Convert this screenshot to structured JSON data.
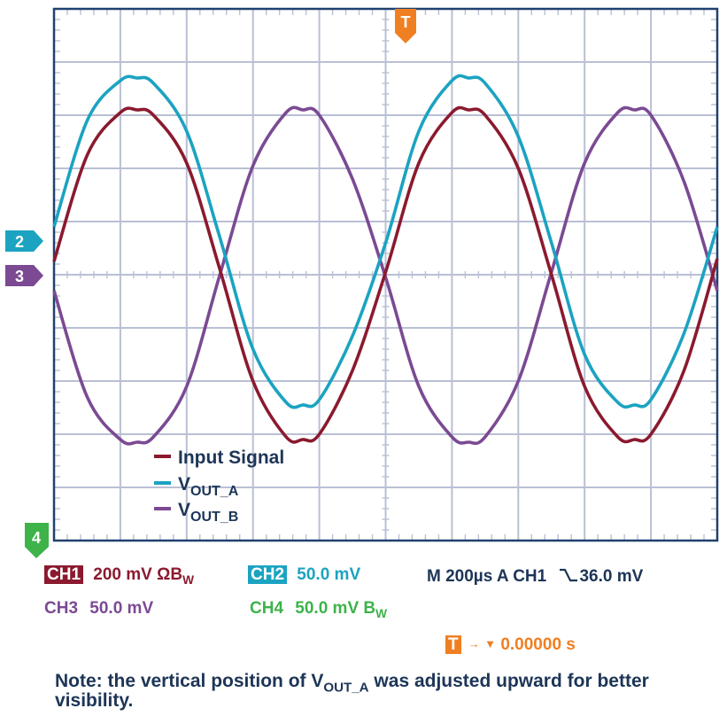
{
  "colors": {
    "ch1": "#8b1a2f",
    "ch2": "#1ba3c1",
    "ch3": "#7b4a93",
    "ch4": "#3db34a",
    "trigger": "#f07f22",
    "text": "#1d3557",
    "grid": "#b9c0d4",
    "frame": "#20416e"
  },
  "markers": {
    "trigger_label": "T",
    "ch2_label": "2",
    "ch3_label": "3",
    "ch4_label": "4"
  },
  "legend": {
    "input": "Input Signal",
    "vouta_main": "V",
    "vouta_sub": "OUT_A",
    "voutb_main": "V",
    "voutb_sub": "OUT_B"
  },
  "status": {
    "ch1_badge": "CH1",
    "ch1_setting": "200 mV ΩB",
    "ch1_sub": "W",
    "ch2_badge": "CH2",
    "ch2_setting": "50.0 mV",
    "timebase": "M 200µs  A  CH1",
    "trigger_level": "36.0 mV",
    "ch3_label": "CH3",
    "ch3_setting": "50.0 mV",
    "ch4_label": "CH4",
    "ch4_setting": "50.0 mV B",
    "ch4_sub": "W",
    "trigger_badge": "T",
    "trigger_time": "0.00000 s"
  },
  "note": {
    "line_a": "Note: the vertical position of V",
    "sub": "OUT_A",
    "line_b": " was adjusted upward for better visibility."
  },
  "chart_data": {
    "type": "line",
    "title": "",
    "xlabel": "",
    "ylabel": "",
    "x_unit": "divisions",
    "y_unit": "divisions",
    "xlim": [
      0,
      10
    ],
    "ylim": [
      -5,
      5
    ],
    "grid": true,
    "legend_position": "bottom-left",
    "series": [
      {
        "name": "Input Signal",
        "color": "#8b1a2f",
        "x": [
          0,
          0.5,
          1,
          1.25,
          1.5,
          2,
          2.5,
          3,
          3.5,
          3.75,
          4,
          4.5,
          5,
          5.5,
          6,
          6.25,
          6.5,
          7,
          7.5,
          8,
          8.5,
          8.75,
          9,
          9.5,
          10
        ],
        "y": [
          0.25,
          2.25,
          3.05,
          3.1,
          3.0,
          2.1,
          0.1,
          -2.0,
          -3.05,
          -3.1,
          -3.0,
          -1.8,
          0.05,
          2.1,
          3.05,
          3.1,
          3.0,
          2.0,
          0.0,
          -2.1,
          -3.05,
          -3.1,
          -3.0,
          -1.8,
          0.3
        ]
      },
      {
        "name": "VOUT_A",
        "color": "#1ba3c1",
        "x": [
          0,
          0.5,
          1,
          1.25,
          1.5,
          2,
          2.5,
          3,
          3.5,
          3.75,
          4,
          4.5,
          5,
          5.5,
          6,
          6.25,
          6.5,
          7,
          7.5,
          8,
          8.5,
          8.75,
          9,
          9.5,
          10
        ],
        "y": [
          0.9,
          2.9,
          3.65,
          3.7,
          3.6,
          2.7,
          0.7,
          -1.4,
          -2.4,
          -2.45,
          -2.35,
          -1.15,
          0.6,
          2.7,
          3.65,
          3.7,
          3.6,
          2.6,
          0.6,
          -1.5,
          -2.4,
          -2.45,
          -2.35,
          -1.1,
          0.9
        ]
      },
      {
        "name": "VOUT_B",
        "color": "#7b4a93",
        "x": [
          0,
          0.5,
          1,
          1.25,
          1.5,
          2,
          2.5,
          3,
          3.5,
          3.75,
          4,
          4.5,
          5,
          5.5,
          6,
          6.25,
          6.5,
          7,
          7.5,
          8,
          8.5,
          8.75,
          9,
          9.5,
          10
        ],
        "y": [
          -0.3,
          -2.3,
          -3.1,
          -3.15,
          -3.05,
          -2.1,
          0.0,
          2.05,
          3.05,
          3.1,
          3.0,
          1.8,
          -0.05,
          -2.1,
          -3.05,
          -3.15,
          -3.05,
          -2.0,
          0.05,
          2.1,
          3.05,
          3.1,
          3.0,
          1.75,
          -0.3
        ]
      }
    ]
  }
}
